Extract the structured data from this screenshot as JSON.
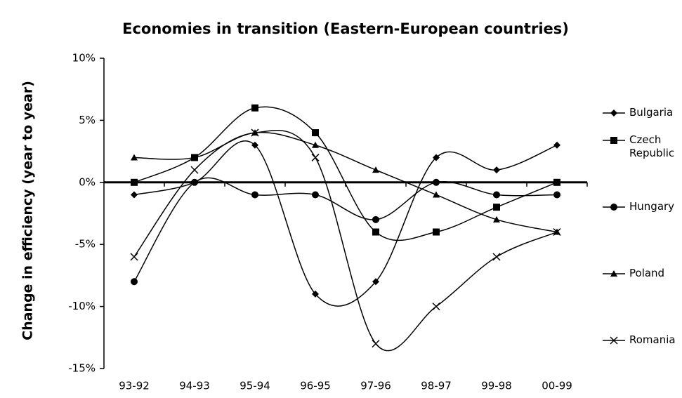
{
  "chart_data": {
    "type": "line",
    "title": "Economies in transition (Eastern-European countries)",
    "y_label": "Change in efficiency (year to year)",
    "categories": [
      "93-92",
      "94-93",
      "95-94",
      "96-95",
      "97-96",
      "98-97",
      "99-98",
      "00-99"
    ],
    "ylim": [
      -15,
      10
    ],
    "yticks": [
      {
        "value": -15,
        "label": "-15%"
      },
      {
        "value": -10,
        "label": "-10%"
      },
      {
        "value": -5,
        "label": "-5%"
      },
      {
        "value": 0,
        "label": "0%"
      },
      {
        "value": 5,
        "label": "5%"
      },
      {
        "value": 10,
        "label": "10%"
      }
    ],
    "smooth": true,
    "legend": "right",
    "series": [
      {
        "name": "Bulgaria",
        "color": "#000000",
        "marker": "diamond",
        "values": [
          -1,
          0,
          3,
          -9,
          -8,
          2,
          1,
          3
        ]
      },
      {
        "name": "Czech Republic",
        "color": "#000000",
        "marker": "square",
        "values": [
          0,
          2,
          6,
          4,
          -4,
          -4,
          -2,
          0
        ]
      },
      {
        "name": "Hungary",
        "color": "#000000",
        "marker": "circle",
        "values": [
          -8,
          0,
          -1,
          -1,
          -3,
          0,
          -1,
          -1
        ]
      },
      {
        "name": "Poland",
        "color": "#000000",
        "marker": "triangle",
        "values": [
          2,
          2,
          4,
          3,
          1,
          -1,
          -3,
          -4
        ]
      },
      {
        "name": "Romania",
        "color": "#000000",
        "marker": "x",
        "values": [
          -6,
          1,
          4,
          2,
          -13,
          -10,
          -6,
          -4
        ]
      }
    ]
  }
}
